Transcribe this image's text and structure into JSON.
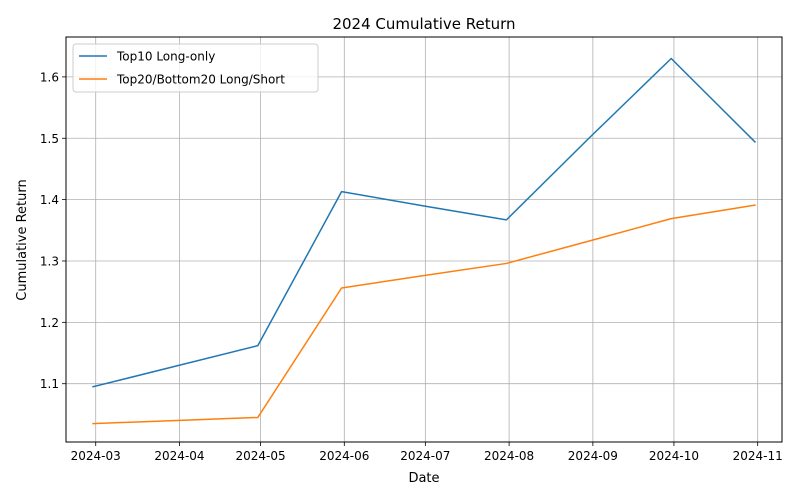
{
  "chart_data": {
    "type": "line",
    "title": "2024 Cumulative Return",
    "xlabel": "Date",
    "ylabel": "Cumulative Return",
    "x": [
      "2024-02-29",
      "2024-03-31",
      "2024-04-30",
      "2024-05-31",
      "2024-06-30",
      "2024-07-31",
      "2024-08-31",
      "2024-09-30",
      "2024-10-31"
    ],
    "x_ticks": [
      "2024-03-01",
      "2024-04-01",
      "2024-05-01",
      "2024-06-01",
      "2024-07-01",
      "2024-08-01",
      "2024-09-01",
      "2024-10-01",
      "2024-11-01"
    ],
    "x_tick_labels": [
      "2024-03",
      "2024-04",
      "2024-05",
      "2024-06",
      "2024-07",
      "2024-08",
      "2024-09",
      "2024-10",
      "2024-11"
    ],
    "xlim": [
      "2024-02-19",
      "2024-11-10"
    ],
    "y_ticks": [
      1.1,
      1.2,
      1.3,
      1.4,
      1.5,
      1.6
    ],
    "y_tick_labels": [
      "1.1",
      "1.2",
      "1.3",
      "1.4",
      "1.5",
      "1.6"
    ],
    "ylim": [
      1.005,
      1.665
    ],
    "grid": true,
    "legend_position": "top-left",
    "series": [
      {
        "name": "Top10 Long-only",
        "color": "#1f77b4",
        "values": [
          1.095,
          1.129,
          1.162,
          1.413,
          1.39,
          1.367,
          1.502,
          1.63,
          1.494
        ]
      },
      {
        "name": "Top20/Bottom20 Long/Short",
        "color": "#ff7f0e",
        "values": [
          1.035,
          1.04,
          1.045,
          1.256,
          1.276,
          1.296,
          1.333,
          1.369,
          1.391
        ]
      }
    ]
  }
}
